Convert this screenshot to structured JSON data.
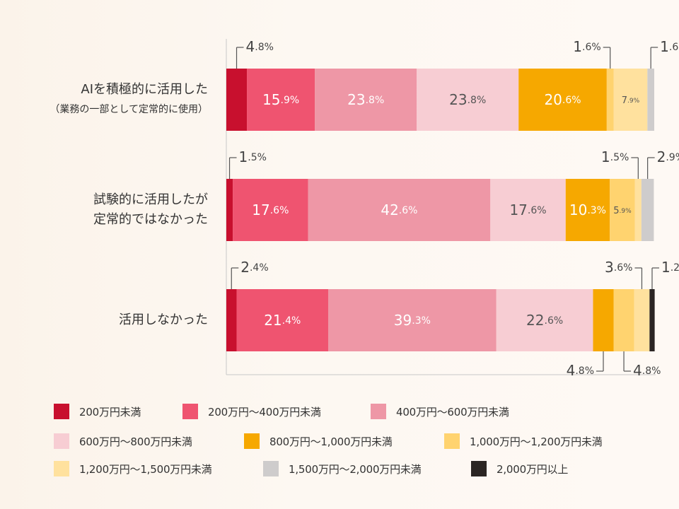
{
  "chart_data": {
    "type": "bar",
    "orientation": "horizontal",
    "stacked": true,
    "unit": "%",
    "categories": [
      [
        "AIを積極的に活用した",
        "（業務の一部として定常的に使用）"
      ],
      [
        "試験的に活用したが",
        "定常的ではなかった"
      ],
      [
        "活用しなかった"
      ]
    ],
    "series": [
      {
        "name": "200万円未満",
        "color": "#c8102e",
        "values": [
          4.8,
          1.5,
          2.4
        ]
      },
      {
        "name": "200万円～400万円未満",
        "color": "#ef5470",
        "values": [
          15.9,
          17.6,
          21.4
        ]
      },
      {
        "name": "400万円～600万円未満",
        "color": "#ee97a6",
        "values": [
          23.8,
          42.6,
          39.3
        ]
      },
      {
        "name": "600万円～800万円未満",
        "color": "#f7cdd3",
        "values": [
          23.8,
          17.6,
          22.6
        ]
      },
      {
        "name": "800万円～1,000万円未満",
        "color": "#f6a800",
        "values": [
          20.6,
          10.3,
          4.8
        ]
      },
      {
        "name": "1,000万円～1,200万円未満",
        "color": "#ffd36f",
        "values": [
          1.6,
          5.9,
          4.8
        ]
      },
      {
        "name": "1,200万円～1,500万円未満",
        "color": "#ffe19e",
        "values": [
          7.9,
          1.5,
          3.6
        ]
      },
      {
        "name": "1,500万円～2,000万円未満",
        "color": "#cecccc",
        "values": [
          1.6,
          2.9,
          0
        ]
      },
      {
        "name": "2,000万円以上",
        "color": "#2b2523",
        "values": [
          0,
          0,
          1.2
        ]
      }
    ],
    "legend_position": "bottom",
    "grid": false
  }
}
